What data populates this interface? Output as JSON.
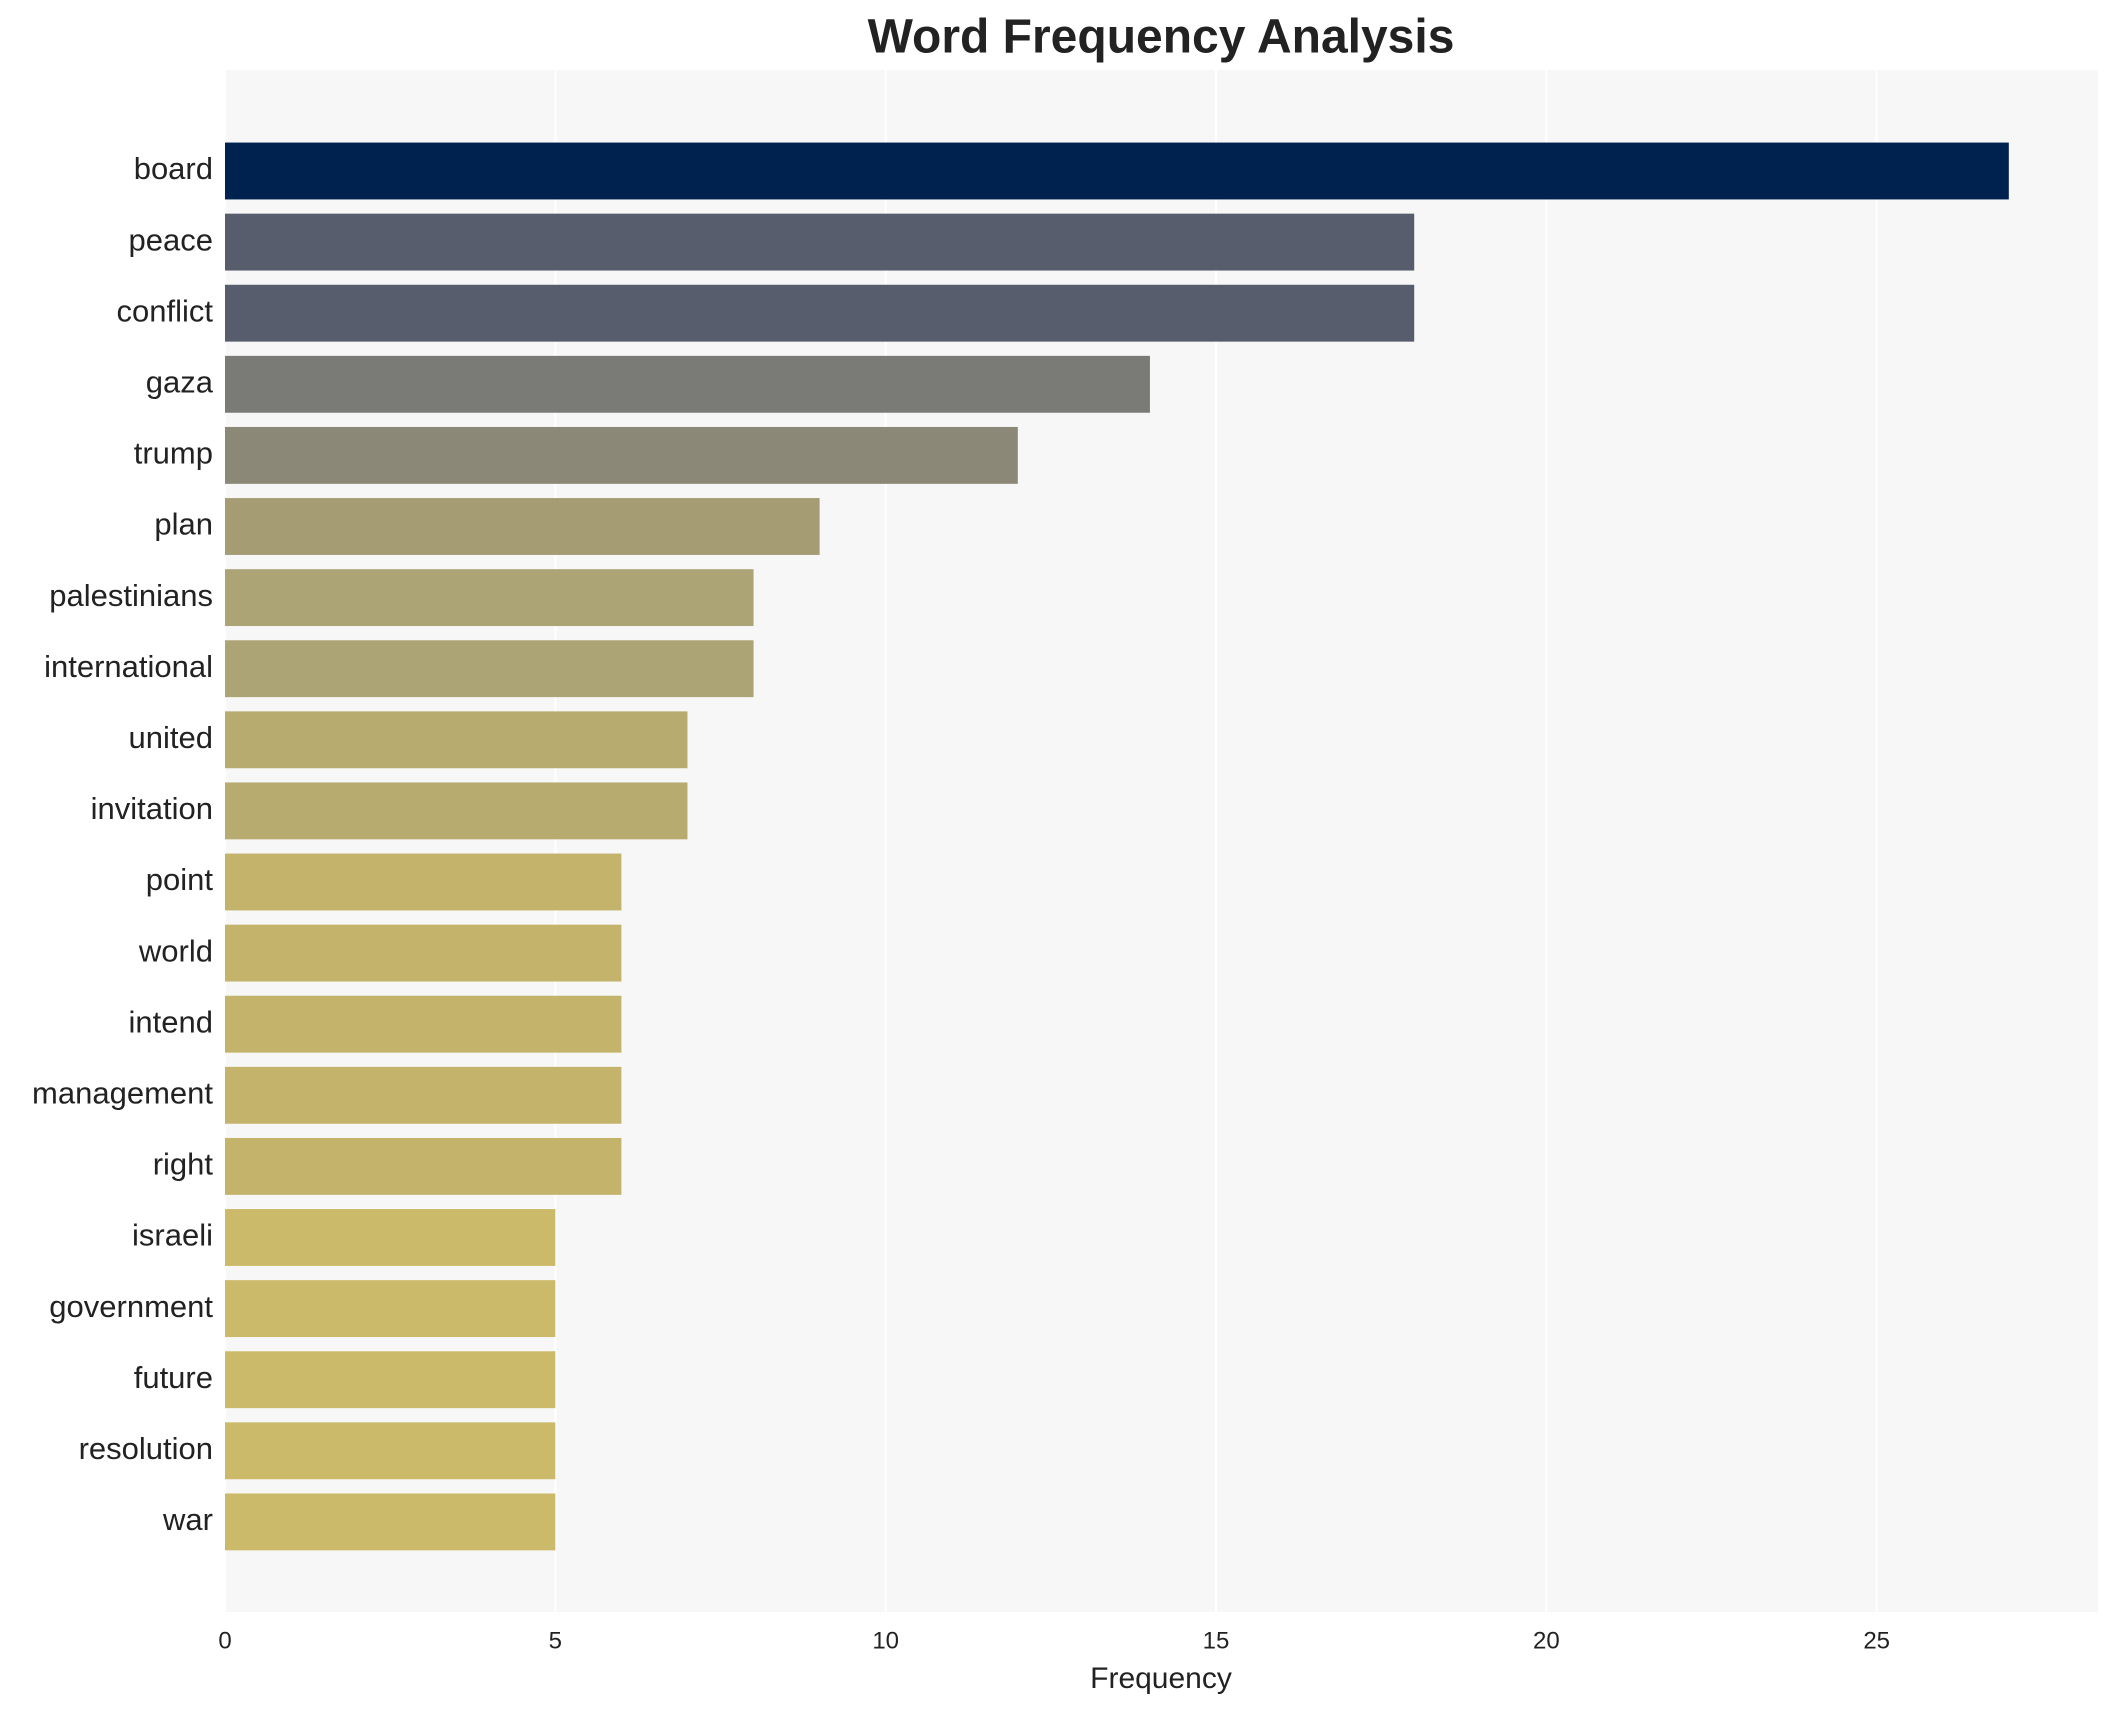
{
  "chart_data": {
    "type": "barh",
    "title": "Word Frequency Analysis",
    "xlabel": "Frequency",
    "categories": [
      "board",
      "peace",
      "conflict",
      "gaza",
      "trump",
      "plan",
      "palestinians",
      "international",
      "united",
      "invitation",
      "point",
      "world",
      "intend",
      "management",
      "right",
      "israeli",
      "government",
      "future",
      "resolution",
      "war"
    ],
    "values": [
      27,
      18,
      18,
      14,
      12,
      9,
      8,
      8,
      7,
      7,
      6,
      6,
      6,
      6,
      6,
      5,
      5,
      5,
      5,
      5
    ],
    "colors": [
      "#00224e",
      "#575d6d",
      "#575d6d",
      "#7a7a77",
      "#8b8878",
      "#a59c74",
      "#aca475",
      "#aca475",
      "#b8ab6f",
      "#b8ab6f",
      "#c4b36b",
      "#c4b36b",
      "#c4b36b",
      "#c4b36b",
      "#c4b36b",
      "#cbba69",
      "#cbba69",
      "#cbba69",
      "#cbba69",
      "#cbba69"
    ],
    "xlim": [
      0,
      28.35
    ],
    "xticks": [
      0,
      5,
      10,
      15,
      20,
      25
    ],
    "grid": true
  }
}
